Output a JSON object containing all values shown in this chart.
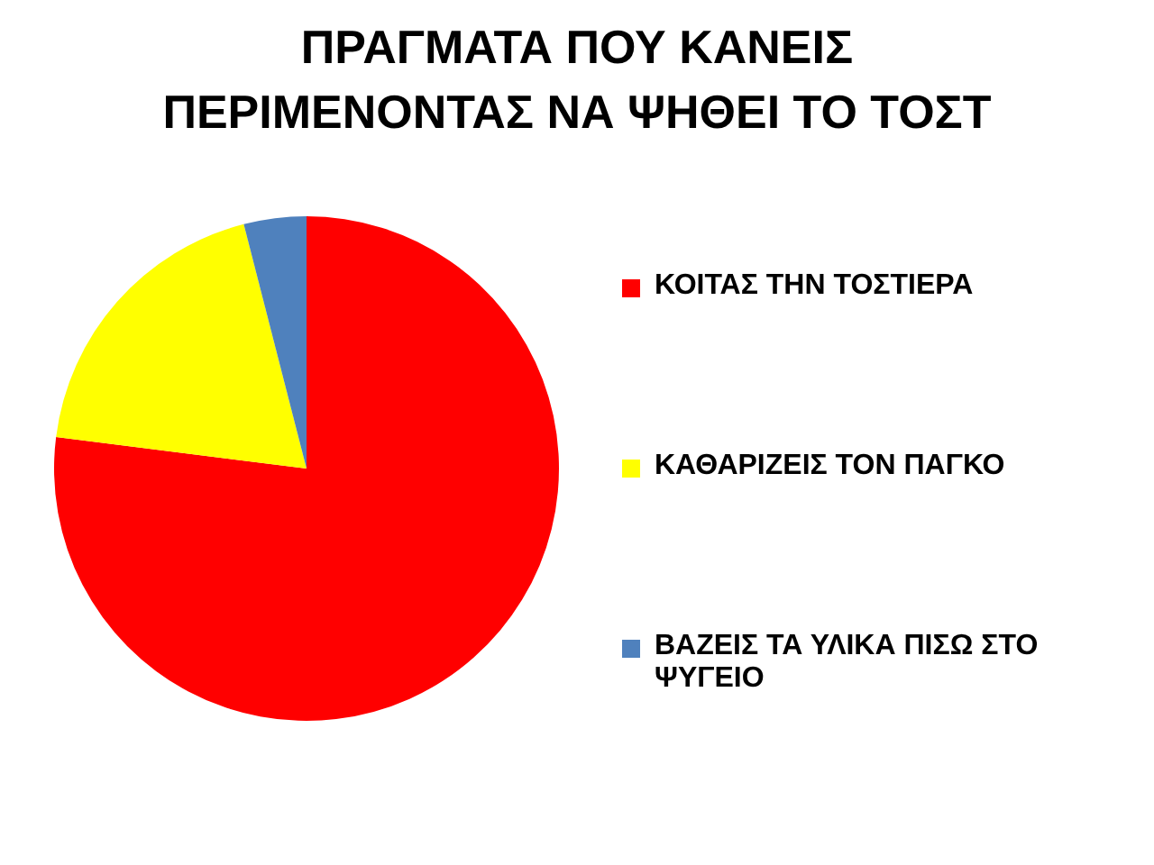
{
  "chart_data": {
    "type": "pie",
    "title": "ΠΡΑΓΜΑΤΑ ΠΟΥ ΚΑΝΕΙΣ\nΠΕΡΙΜΕΝΟΝΤΑΣ ΝΑ ΨΗΘΕΙ ΤΟ ΤΟΣΤ",
    "categories": [
      "ΚΟΙΤΑΣ ΤΗΝ ΤΟΣΤΙΕΡΑ",
      "ΚΑΘΑΡΙΖΕΙΣ ΤΟΝ ΠΑΓΚΟ",
      "ΒΑΖΕΙΣ ΤΑ ΥΛΙΚΑ ΠΙΣΩ ΣΤΟ ΨΥΓΕΙΟ"
    ],
    "values": [
      77,
      19,
      4
    ],
    "colors": [
      "#ff0000",
      "#ffff00",
      "#4f81bd"
    ],
    "legend": "right"
  }
}
